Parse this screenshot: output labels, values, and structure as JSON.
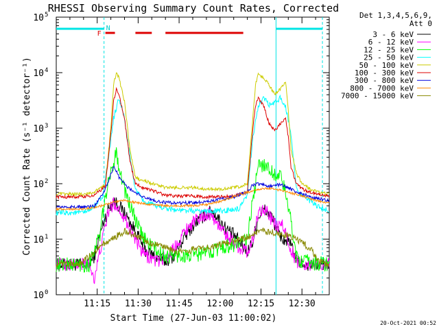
{
  "chart_data": {
    "type": "line",
    "title": "RHESSI Observing Summary Count Rates, Corrected",
    "xlabel": "Start Time (27-Jun-03 11:00:02)",
    "ylabel": "Corrected Count Rate (s⁻¹ detector⁻¹)",
    "y_scale": "log",
    "ylim": [
      1,
      100000
    ],
    "xlim_minutes": [
      0,
      100
    ],
    "x_ticks": [
      {
        "label": "11:15",
        "t": 15
      },
      {
        "label": "11:30",
        "t": 30
      },
      {
        "label": "11:45",
        "t": 45
      },
      {
        "label": "12:00",
        "t": 60
      },
      {
        "label": "12:15",
        "t": 75
      },
      {
        "label": "12:30",
        "t": 90
      }
    ],
    "y_ticks": [
      {
        "base": "10",
        "exp": "0",
        "value": 1
      },
      {
        "base": "10",
        "exp": "1",
        "value": 10
      },
      {
        "base": "10",
        "exp": "2",
        "value": 100
      },
      {
        "base": "10",
        "exp": "3",
        "value": 1000
      },
      {
        "base": "10",
        "exp": "4",
        "value": 10000
      },
      {
        "base": "10",
        "exp": "5",
        "value": 100000
      }
    ],
    "legend_header": [
      "Det 1,3,4,5,6,9,",
      "Att 0"
    ],
    "legend_position": "right",
    "series": [
      {
        "name": "3 - 6 keV",
        "color": "#000000",
        "noise": 0.12,
        "points": [
          [
            0,
            3.5
          ],
          [
            12,
            3.5
          ],
          [
            14,
            5
          ],
          [
            17,
            18
          ],
          [
            19,
            35
          ],
          [
            21,
            50
          ],
          [
            23,
            40
          ],
          [
            25,
            30
          ],
          [
            27,
            20
          ],
          [
            29,
            14
          ],
          [
            31,
            9
          ],
          [
            33,
            6
          ],
          [
            36,
            5
          ],
          [
            40,
            4
          ],
          [
            43,
            5
          ],
          [
            46,
            9
          ],
          [
            49,
            15
          ],
          [
            52,
            22
          ],
          [
            55,
            28
          ],
          [
            57,
            33
          ],
          [
            59,
            25
          ],
          [
            62,
            16
          ],
          [
            65,
            12
          ],
          [
            68,
            8
          ],
          [
            70,
            6
          ],
          [
            72,
            9
          ],
          [
            74,
            25
          ],
          [
            76,
            35
          ],
          [
            79,
            25
          ],
          [
            81,
            14
          ],
          [
            83,
            10
          ],
          [
            85,
            9
          ],
          [
            87,
            6
          ],
          [
            88,
            4
          ],
          [
            92,
            3.5
          ],
          [
            100,
            3.5
          ]
        ]
      },
      {
        "name": "6 - 12 keV",
        "color": "#ff00ff",
        "noise": 0.12,
        "points": [
          [
            0,
            3.5
          ],
          [
            12,
            3.5
          ],
          [
            14,
            2
          ],
          [
            16,
            6
          ],
          [
            19,
            30
          ],
          [
            21,
            45
          ],
          [
            23,
            35
          ],
          [
            25,
            25
          ],
          [
            27,
            15
          ],
          [
            29,
            10
          ],
          [
            31,
            6
          ],
          [
            33,
            5
          ],
          [
            37,
            4
          ],
          [
            41,
            5
          ],
          [
            44,
            8
          ],
          [
            47,
            14
          ],
          [
            50,
            20
          ],
          [
            53,
            25
          ],
          [
            56,
            30
          ],
          [
            58,
            22
          ],
          [
            61,
            14
          ],
          [
            64,
            10
          ],
          [
            67,
            7
          ],
          [
            70,
            6
          ],
          [
            72,
            10
          ],
          [
            74,
            30
          ],
          [
            76,
            38
          ],
          [
            79,
            22
          ],
          [
            81,
            16
          ],
          [
            83,
            18
          ],
          [
            85,
            9
          ],
          [
            87,
            5
          ],
          [
            88,
            4
          ],
          [
            92,
            3.5
          ],
          [
            100,
            3.5
          ]
        ]
      },
      {
        "name": "12 - 25 keV",
        "color": "#00ff00",
        "noise": 0.14,
        "points": [
          [
            0,
            3.5
          ],
          [
            12,
            3.5
          ],
          [
            13,
            5
          ],
          [
            16,
            12
          ],
          [
            18,
            60
          ],
          [
            20,
            150
          ],
          [
            22,
            400
          ],
          [
            23,
            200
          ],
          [
            25,
            80
          ],
          [
            27,
            40
          ],
          [
            29,
            22
          ],
          [
            31,
            13
          ],
          [
            33,
            9
          ],
          [
            35,
            8
          ],
          [
            37,
            6
          ],
          [
            39,
            5
          ],
          [
            42,
            5
          ],
          [
            50,
            5
          ],
          [
            56,
            6
          ],
          [
            60,
            7
          ],
          [
            65,
            8
          ],
          [
            70,
            10
          ],
          [
            72,
            50
          ],
          [
            74,
            200
          ],
          [
            76,
            230
          ],
          [
            78,
            180
          ],
          [
            80,
            150
          ],
          [
            82,
            140
          ],
          [
            84,
            70
          ],
          [
            86,
            20
          ],
          [
            88,
            5
          ],
          [
            90,
            4
          ],
          [
            100,
            3.5
          ]
        ]
      },
      {
        "name": "25 - 50 keV",
        "color": "#00ffff",
        "noise": 0.05,
        "points": [
          [
            0,
            30
          ],
          [
            10,
            30
          ],
          [
            13,
            35
          ],
          [
            17,
            60
          ],
          [
            19,
            250
          ],
          [
            21,
            1500
          ],
          [
            23,
            3500
          ],
          [
            25,
            1500
          ],
          [
            27,
            300
          ],
          [
            29,
            80
          ],
          [
            31,
            55
          ],
          [
            33,
            45
          ],
          [
            38,
            38
          ],
          [
            45,
            33
          ],
          [
            52,
            32
          ],
          [
            58,
            32
          ],
          [
            63,
            33
          ],
          [
            67,
            35
          ],
          [
            70,
            60
          ],
          [
            72,
            700
          ],
          [
            74,
            2500
          ],
          [
            76,
            3500
          ],
          [
            78,
            2600
          ],
          [
            80,
            2800
          ],
          [
            82,
            3500
          ],
          [
            84,
            2500
          ],
          [
            86,
            800
          ],
          [
            88,
            80
          ],
          [
            90,
            60
          ],
          [
            94,
            45
          ],
          [
            97,
            35
          ],
          [
            100,
            33
          ]
        ]
      },
      {
        "name": "50 - 100 keV",
        "color": "#cccc00",
        "noise": 0.03,
        "points": [
          [
            0,
            65
          ],
          [
            10,
            65
          ],
          [
            14,
            70
          ],
          [
            18,
            100
          ],
          [
            20,
            1000
          ],
          [
            21,
            6000
          ],
          [
            22,
            10000
          ],
          [
            23,
            8000
          ],
          [
            25,
            3000
          ],
          [
            27,
            400
          ],
          [
            29,
            130
          ],
          [
            31,
            115
          ],
          [
            33,
            110
          ],
          [
            35,
            100
          ],
          [
            37,
            95
          ],
          [
            40,
            85
          ],
          [
            45,
            85
          ],
          [
            50,
            85
          ],
          [
            55,
            80
          ],
          [
            60,
            80
          ],
          [
            65,
            85
          ],
          [
            68,
            90
          ],
          [
            70,
            100
          ],
          [
            72,
            1500
          ],
          [
            73,
            6000
          ],
          [
            74,
            9500
          ],
          [
            76,
            8000
          ],
          [
            78,
            6000
          ],
          [
            80,
            4000
          ],
          [
            82,
            5000
          ],
          [
            84,
            7000
          ],
          [
            85,
            2000
          ],
          [
            86,
            400
          ],
          [
            88,
            150
          ],
          [
            90,
            100
          ],
          [
            93,
            80
          ],
          [
            96,
            70
          ],
          [
            100,
            65
          ]
        ]
      },
      {
        "name": "100 - 300 keV",
        "color": "#dd0000",
        "noise": 0.03,
        "points": [
          [
            0,
            58
          ],
          [
            10,
            58
          ],
          [
            14,
            62
          ],
          [
            18,
            90
          ],
          [
            20,
            800
          ],
          [
            21,
            3000
          ],
          [
            22,
            5000
          ],
          [
            23,
            4000
          ],
          [
            25,
            1500
          ],
          [
            27,
            250
          ],
          [
            29,
            100
          ],
          [
            31,
            88
          ],
          [
            33,
            82
          ],
          [
            35,
            77
          ],
          [
            37,
            70
          ],
          [
            40,
            62
          ],
          [
            45,
            60
          ],
          [
            50,
            60
          ],
          [
            55,
            58
          ],
          [
            60,
            58
          ],
          [
            65,
            60
          ],
          [
            70,
            70
          ],
          [
            72,
            1000
          ],
          [
            73,
            2500
          ],
          [
            74,
            3500
          ],
          [
            76,
            2500
          ],
          [
            78,
            1200
          ],
          [
            80,
            900
          ],
          [
            82,
            1200
          ],
          [
            84,
            1500
          ],
          [
            85,
            700
          ],
          [
            86,
            200
          ],
          [
            88,
            100
          ],
          [
            90,
            80
          ],
          [
            95,
            65
          ],
          [
            100,
            60
          ]
        ]
      },
      {
        "name": "300 - 800 keV",
        "color": "#0000dd",
        "noise": 0.03,
        "points": [
          [
            0,
            38
          ],
          [
            10,
            38
          ],
          [
            14,
            40
          ],
          [
            18,
            80
          ],
          [
            20,
            150
          ],
          [
            21,
            200
          ],
          [
            22,
            170
          ],
          [
            23,
            130
          ],
          [
            25,
            100
          ],
          [
            27,
            80
          ],
          [
            30,
            65
          ],
          [
            33,
            55
          ],
          [
            37,
            48
          ],
          [
            42,
            45
          ],
          [
            50,
            45
          ],
          [
            55,
            48
          ],
          [
            60,
            52
          ],
          [
            65,
            58
          ],
          [
            68,
            65
          ],
          [
            70,
            70
          ],
          [
            72,
            95
          ],
          [
            74,
            100
          ],
          [
            76,
            95
          ],
          [
            78,
            90
          ],
          [
            80,
            95
          ],
          [
            82,
            95
          ],
          [
            84,
            90
          ],
          [
            86,
            80
          ],
          [
            88,
            70
          ],
          [
            90,
            65
          ],
          [
            95,
            55
          ],
          [
            100,
            50
          ]
        ]
      },
      {
        "name": "800 - 7000 keV",
        "color": "#ff8800",
        "noise": 0.02,
        "points": [
          [
            0,
            35
          ],
          [
            10,
            35
          ],
          [
            15,
            38
          ],
          [
            20,
            45
          ],
          [
            25,
            50
          ],
          [
            30,
            45
          ],
          [
            35,
            42
          ],
          [
            40,
            40
          ],
          [
            45,
            40
          ],
          [
            50,
            40
          ],
          [
            55,
            42
          ],
          [
            60,
            48
          ],
          [
            65,
            58
          ],
          [
            70,
            70
          ],
          [
            75,
            80
          ],
          [
            78,
            82
          ],
          [
            80,
            80
          ],
          [
            85,
            70
          ],
          [
            90,
            60
          ],
          [
            95,
            50
          ],
          [
            100,
            45
          ]
        ]
      },
      {
        "name": "7000 - 15000 keV",
        "color": "#888800",
        "noise": 0.06,
        "points": [
          [
            0,
            3.5
          ],
          [
            8,
            3.5
          ],
          [
            10,
            4
          ],
          [
            14,
            6
          ],
          [
            17,
            8
          ],
          [
            20,
            10
          ],
          [
            23,
            12
          ],
          [
            25,
            14
          ],
          [
            27,
            13
          ],
          [
            30,
            11
          ],
          [
            33,
            9
          ],
          [
            36,
            8
          ],
          [
            40,
            7
          ],
          [
            44,
            6
          ],
          [
            48,
            6
          ],
          [
            52,
            7
          ],
          [
            56,
            7
          ],
          [
            60,
            8
          ],
          [
            64,
            9
          ],
          [
            68,
            10
          ],
          [
            72,
            12
          ],
          [
            76,
            14
          ],
          [
            80,
            13
          ],
          [
            84,
            12
          ],
          [
            88,
            10
          ],
          [
            91,
            8
          ],
          [
            94,
            6
          ],
          [
            96,
            4
          ],
          [
            100,
            3.5
          ]
        ]
      }
    ],
    "annotations": {
      "flare_marker": "F",
      "night_marker": "N",
      "night_bars": [
        [
          0,
          17.5
        ],
        [
          80.5,
          97.5
        ]
      ],
      "flare_segments": [
        [
          18,
          21.5
        ],
        [
          29,
          35
        ],
        [
          40,
          68.5
        ]
      ],
      "vertical_lines": [
        {
          "t": 17.5,
          "style": "dashed"
        },
        {
          "t": 80.5,
          "style": "solid"
        },
        {
          "t": 97.5,
          "style": "dashed"
        }
      ]
    },
    "timestamp": "20-Oct-2021 00:52"
  }
}
